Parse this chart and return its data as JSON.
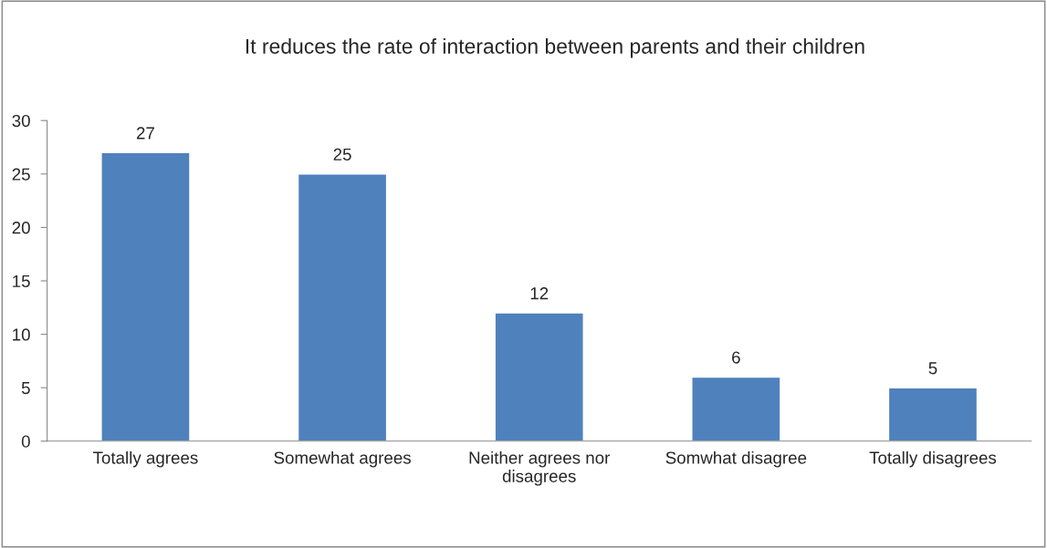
{
  "chart_data": {
    "type": "bar",
    "title": "It reduces the rate of interaction between parents and their children",
    "categories": [
      "Totally agrees",
      "Somewhat agrees",
      "Neither agrees nor\ndisagrees",
      "Somwhat disagree",
      "Totally disagrees"
    ],
    "values": [
      27,
      25,
      12,
      6,
      5
    ],
    "color": "#4f81bd",
    "ylim": [
      0,
      30
    ],
    "yticks": [
      0,
      5,
      10,
      15,
      20,
      25,
      30
    ],
    "grid": false,
    "data_labels": true
  }
}
